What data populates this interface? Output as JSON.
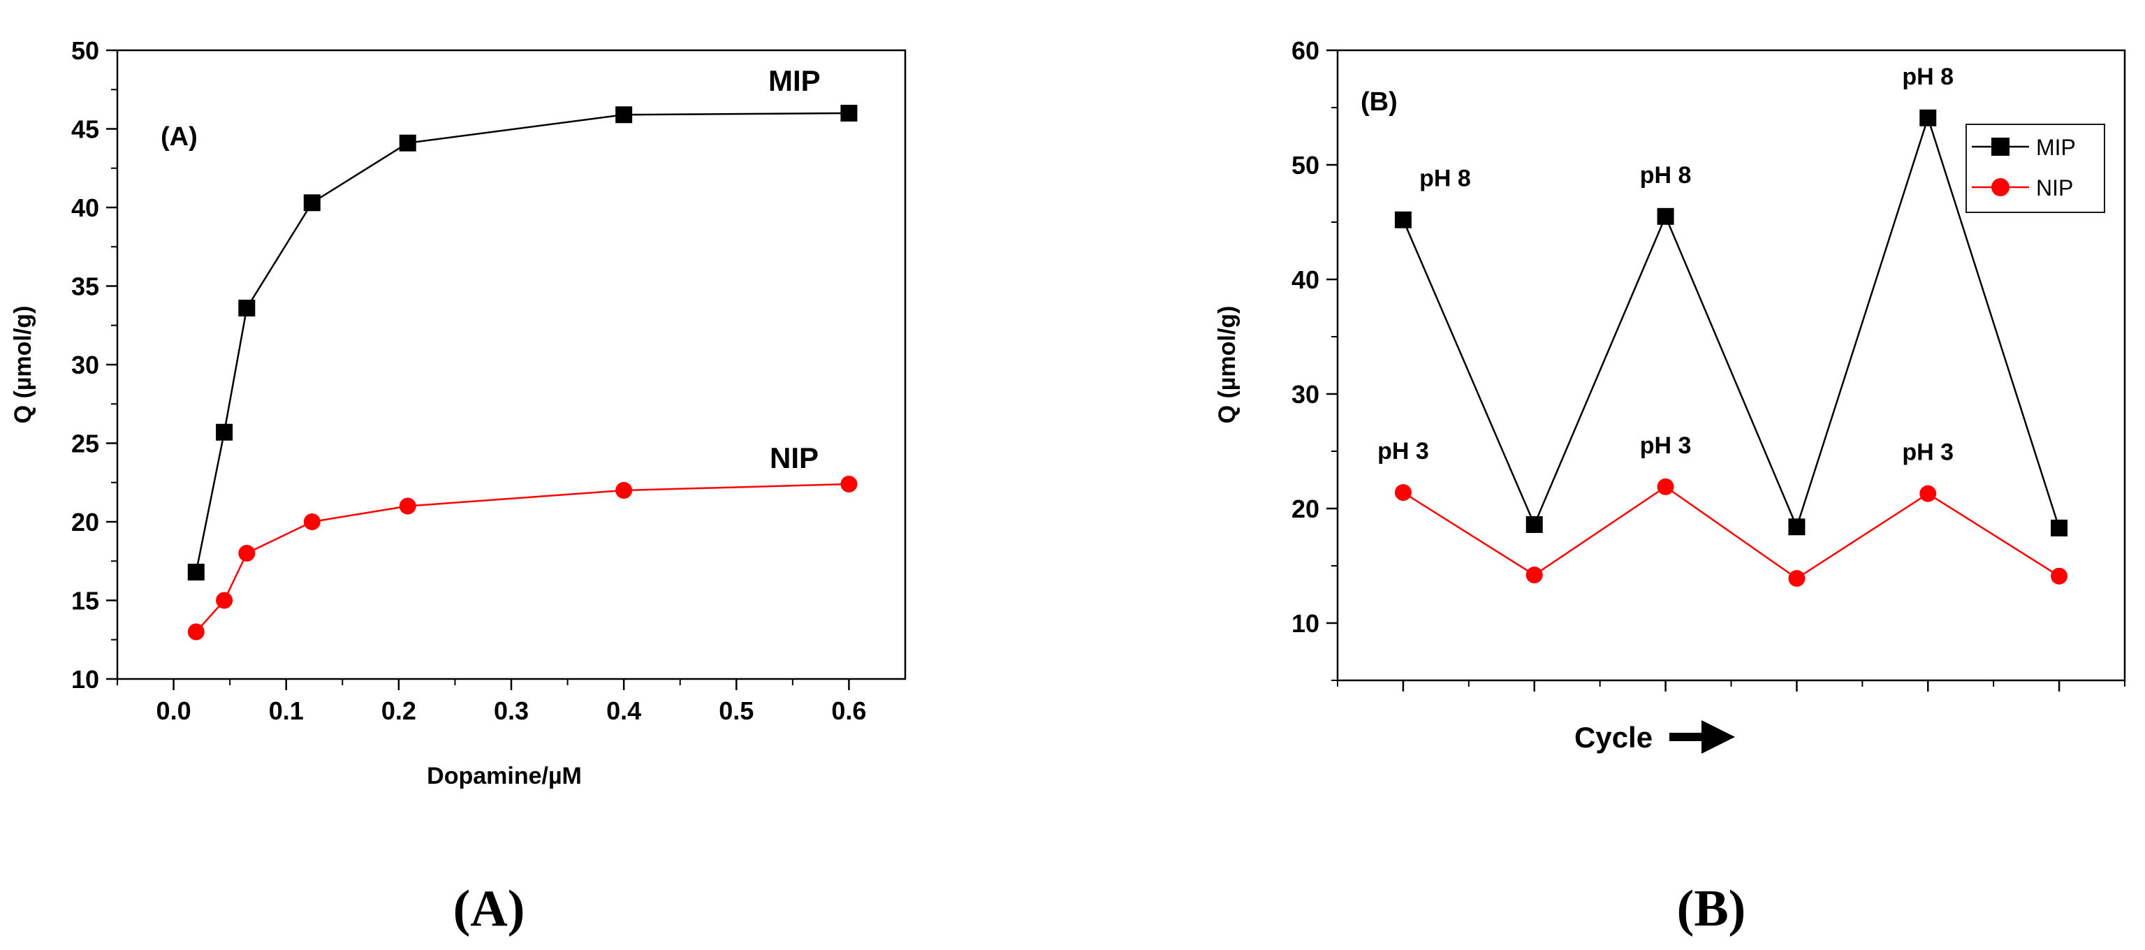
{
  "chart_data": [
    {
      "id": "A",
      "type": "line",
      "panel_label": "(A)",
      "caption": "(A)",
      "xlabel": "Dopamine/µM",
      "ylabel": "Q (µmol/g)",
      "xlim": [
        -0.05,
        0.65
      ],
      "ylim": [
        10,
        50
      ],
      "xticks": [
        0.0,
        0.1,
        0.2,
        0.3,
        0.4,
        0.5,
        0.6
      ],
      "xtick_labels": [
        "0.0",
        "0.1",
        "0.2",
        "0.3",
        "0.4",
        "0.5",
        "0.6"
      ],
      "yticks": [
        10,
        15,
        20,
        25,
        30,
        35,
        40,
        45,
        50
      ],
      "ytick_labels": [
        "10",
        "15",
        "20",
        "25",
        "30",
        "35",
        "40",
        "45",
        "50"
      ],
      "series": [
        {
          "name": "MIP",
          "label": "MIP",
          "color": "#000000",
          "marker": "square",
          "x": [
            0.02,
            0.045,
            0.065,
            0.123,
            0.208,
            0.4,
            0.6
          ],
          "values": [
            16.8,
            25.7,
            33.6,
            40.3,
            44.1,
            45.9,
            46.0
          ]
        },
        {
          "name": "NIP",
          "label": "NIP",
          "color": "#ff0000",
          "marker": "circle",
          "x": [
            0.02,
            0.045,
            0.065,
            0.123,
            0.208,
            0.4,
            0.6
          ],
          "values": [
            13.0,
            15.0,
            18.0,
            20.0,
            21.0,
            22.0,
            22.4
          ]
        }
      ]
    },
    {
      "id": "B",
      "type": "line",
      "panel_label": "(B)",
      "caption": "(B)",
      "xlabel": "Cycle",
      "ylabel": "Q (µmol/g)",
      "xlim": [
        0.5,
        6.5
      ],
      "ylim": [
        5,
        60
      ],
      "xticks": [
        1,
        2,
        3,
        4,
        5,
        6
      ],
      "yticks": [
        10,
        20,
        30,
        40,
        50,
        60
      ],
      "ytick_labels": [
        "10",
        "20",
        "30",
        "40",
        "50",
        "60"
      ],
      "legend": {
        "position": "top-right",
        "entries": [
          "MIP",
          "NIP"
        ]
      },
      "series": [
        {
          "name": "MIP",
          "color": "#000000",
          "marker": "square",
          "x": [
            1,
            2,
            3,
            4,
            5,
            6
          ],
          "values": [
            45.2,
            18.6,
            45.5,
            18.4,
            54.1,
            18.3
          ]
        },
        {
          "name": "NIP",
          "color": "#ff0000",
          "marker": "circle",
          "x": [
            1,
            2,
            3,
            4,
            5,
            6
          ],
          "values": [
            21.4,
            14.2,
            21.9,
            13.9,
            21.3,
            14.1
          ]
        }
      ],
      "annotations": [
        {
          "text": "pH 8",
          "x": 1,
          "y": 45.2,
          "side": "above"
        },
        {
          "text": "pH 8",
          "x": 3,
          "y": 45.5,
          "side": "above"
        },
        {
          "text": "pH 8",
          "x": 5,
          "y": 54.1,
          "side": "above"
        },
        {
          "text": "pH 3",
          "x": 1,
          "y": 21.4,
          "side": "above"
        },
        {
          "text": "pH 3",
          "x": 3,
          "y": 21.9,
          "side": "above"
        },
        {
          "text": "pH 3",
          "x": 5,
          "y": 21.3,
          "side": "above"
        }
      ]
    }
  ]
}
